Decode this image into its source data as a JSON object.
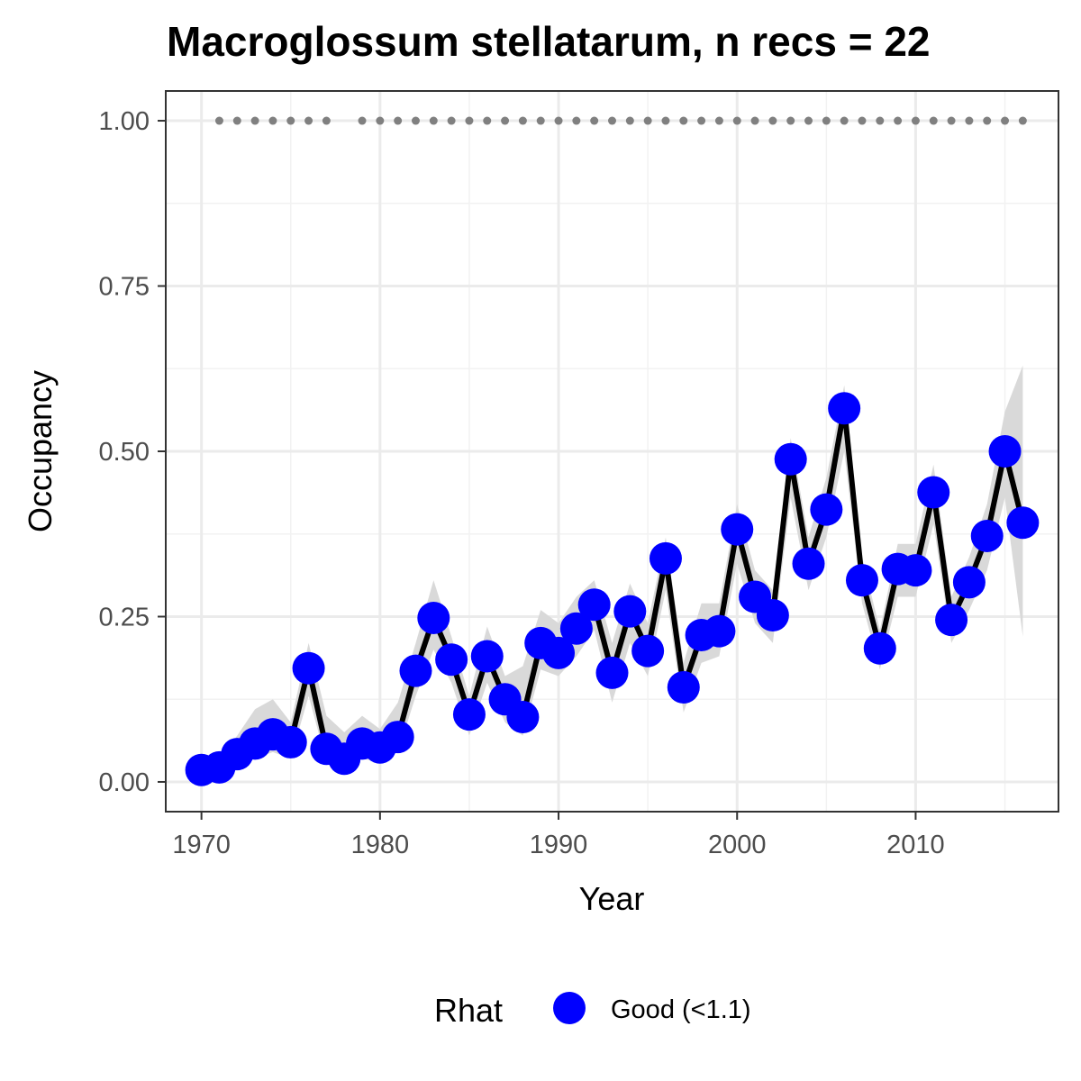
{
  "chart_data": {
    "type": "line",
    "title": "Macroglossum stellatarum, n recs = 22",
    "xlabel": "Year",
    "ylabel": "Occupancy",
    "xlim": [
      1968,
      2018
    ],
    "ylim": [
      -0.045,
      1.045
    ],
    "xticks": [
      "1970",
      "1980",
      "1990",
      "2000",
      "2010"
    ],
    "yticks": [
      "0.00",
      "0.25",
      "0.50",
      "0.75",
      "1.00"
    ],
    "grid": true,
    "legend": {
      "title": "Rhat",
      "position": "bottom",
      "entries": [
        {
          "label": "Good (<1.1)",
          "color": "#0000FF"
        }
      ]
    },
    "series": [
      {
        "type": "line-with-points",
        "color_line": "#000000",
        "color_points": "#0000FF",
        "x": [
          1970,
          1971,
          1972,
          1973,
          1974,
          1975,
          1976,
          1977,
          1978,
          1979,
          1980,
          1981,
          1982,
          1983,
          1984,
          1985,
          1986,
          1987,
          1988,
          1989,
          1990,
          1991,
          1992,
          1993,
          1994,
          1995,
          1996,
          1997,
          1998,
          1999,
          2000,
          2001,
          2002,
          2003,
          2004,
          2005,
          2006,
          2007,
          2008,
          2009,
          2010,
          2011,
          2012,
          2013,
          2014,
          2015,
          2016
        ],
        "y": [
          0.018,
          0.022,
          0.042,
          0.058,
          0.072,
          0.06,
          0.172,
          0.05,
          0.035,
          0.058,
          0.052,
          0.068,
          0.168,
          0.248,
          0.185,
          0.102,
          0.19,
          0.125,
          0.098,
          0.21,
          0.195,
          0.232,
          0.268,
          0.165,
          0.258,
          0.198,
          0.338,
          0.143,
          0.222,
          0.228,
          0.382,
          0.28,
          0.252,
          0.488,
          0.33,
          0.412,
          0.565,
          0.305,
          0.202,
          0.322,
          0.32,
          0.438,
          0.245,
          0.302,
          0.372,
          0.5,
          0.392
        ]
      },
      {
        "type": "ribbon",
        "color": "#d9d9d9",
        "x": [
          1970,
          1971,
          1972,
          1973,
          1974,
          1975,
          1976,
          1977,
          1978,
          1979,
          1980,
          1981,
          1982,
          1983,
          1984,
          1985,
          1986,
          1987,
          1988,
          1989,
          1990,
          1991,
          1992,
          1993,
          1994,
          1995,
          1996,
          1997,
          1998,
          1999,
          2000,
          2001,
          2002,
          2003,
          2004,
          2005,
          2006,
          2007,
          2008,
          2009,
          2010,
          2011,
          2012,
          2013,
          2014,
          2015,
          2016
        ],
        "lower": [
          0.01,
          0.01,
          0.025,
          0.035,
          0.045,
          0.035,
          0.13,
          0.03,
          0.02,
          0.035,
          0.03,
          0.045,
          0.13,
          0.2,
          0.15,
          0.07,
          0.15,
          0.09,
          0.07,
          0.17,
          0.16,
          0.19,
          0.23,
          0.12,
          0.21,
          0.16,
          0.29,
          0.105,
          0.18,
          0.19,
          0.33,
          0.24,
          0.21,
          0.43,
          0.29,
          0.37,
          0.5,
          0.27,
          0.17,
          0.28,
          0.28,
          0.39,
          0.21,
          0.26,
          0.32,
          0.43,
          0.22
        ],
        "upper": [
          0.03,
          0.035,
          0.07,
          0.11,
          0.125,
          0.09,
          0.21,
          0.1,
          0.075,
          0.1,
          0.08,
          0.12,
          0.21,
          0.305,
          0.22,
          0.13,
          0.235,
          0.16,
          0.175,
          0.26,
          0.24,
          0.28,
          0.305,
          0.21,
          0.3,
          0.24,
          0.37,
          0.18,
          0.27,
          0.27,
          0.42,
          0.32,
          0.29,
          0.52,
          0.37,
          0.46,
          0.6,
          0.34,
          0.23,
          0.36,
          0.36,
          0.48,
          0.28,
          0.34,
          0.42,
          0.56,
          0.63
        ]
      },
      {
        "type": "dots",
        "color": "#808080",
        "y": 1.0,
        "x": [
          1971,
          1972,
          1973,
          1974,
          1975,
          1976,
          1977,
          1979,
          1980,
          1981,
          1982,
          1983,
          1984,
          1985,
          1986,
          1987,
          1988,
          1989,
          1990,
          1991,
          1992,
          1993,
          1994,
          1995,
          1996,
          1997,
          1998,
          1999,
          2000,
          2001,
          2002,
          2003,
          2004,
          2005,
          2006,
          2007,
          2008,
          2009,
          2010,
          2011,
          2012,
          2013,
          2014,
          2015,
          2016
        ]
      }
    ]
  }
}
